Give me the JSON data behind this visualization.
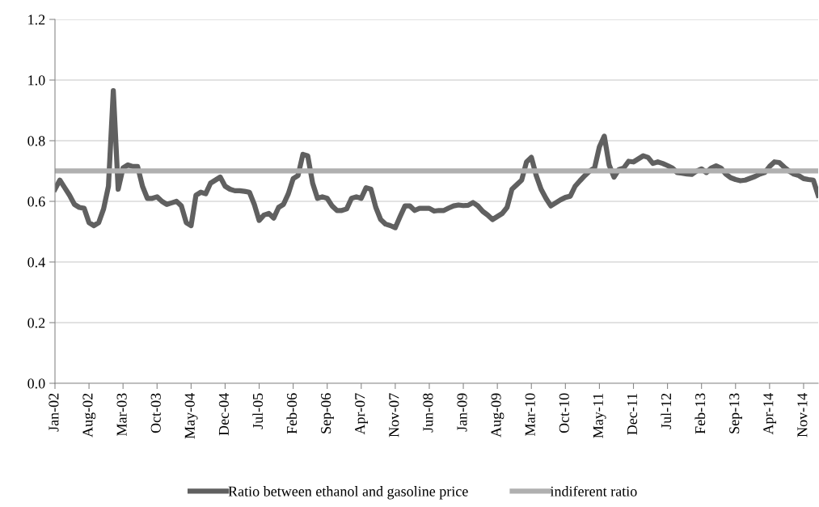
{
  "chart_data": {
    "type": "line",
    "categories": [
      "Jan-02",
      null,
      null,
      null,
      null,
      null,
      null,
      "Aug-02",
      null,
      null,
      null,
      null,
      null,
      null,
      "Mar-03",
      null,
      null,
      null,
      null,
      null,
      null,
      "Oct-03",
      null,
      null,
      null,
      null,
      null,
      null,
      "May-04",
      null,
      null,
      null,
      null,
      null,
      null,
      "Dec-04",
      null,
      null,
      null,
      null,
      null,
      null,
      "Jul-05",
      null,
      null,
      null,
      null,
      null,
      null,
      "Feb-06",
      null,
      null,
      null,
      null,
      null,
      null,
      "Sep-06",
      null,
      null,
      null,
      null,
      null,
      null,
      "Apr-07",
      null,
      null,
      null,
      null,
      null,
      null,
      "Nov-07",
      null,
      null,
      null,
      null,
      null,
      null,
      "Jun-08",
      null,
      null,
      null,
      null,
      null,
      null,
      "Jan-09",
      null,
      null,
      null,
      null,
      null,
      null,
      "Aug-09",
      null,
      null,
      null,
      null,
      null,
      null,
      "Mar-10",
      null,
      null,
      null,
      null,
      null,
      null,
      "Oct-10",
      null,
      null,
      null,
      null,
      null,
      null,
      "May-11",
      null,
      null,
      null,
      null,
      null,
      null,
      "Dec-11",
      null,
      null,
      null,
      null,
      null,
      null,
      "Jul-12",
      null,
      null,
      null,
      null,
      null,
      null,
      "Feb-13",
      null,
      null,
      null,
      null,
      null,
      null,
      "Sep-13",
      null,
      null,
      null,
      null,
      null,
      null,
      "Apr-14",
      null,
      null,
      null,
      null,
      null,
      null,
      "Nov-14",
      null,
      null,
      null
    ],
    "series": [
      {
        "name": "Ratio between ethanol and gasoline price",
        "color": "#606060",
        "values": [
          0.64,
          0.67,
          0.645,
          0.62,
          0.59,
          0.58,
          0.577,
          0.53,
          0.52,
          0.53,
          0.575,
          0.65,
          0.965,
          0.64,
          0.71,
          0.72,
          0.715,
          0.715,
          0.65,
          0.61,
          0.61,
          0.615,
          0.6,
          0.59,
          0.595,
          0.6,
          0.585,
          0.53,
          0.52,
          0.62,
          0.63,
          0.625,
          0.66,
          0.67,
          0.68,
          0.65,
          0.64,
          0.635,
          0.635,
          0.633,
          0.63,
          0.59,
          0.537,
          0.555,
          0.56,
          0.545,
          0.58,
          0.59,
          0.625,
          0.675,
          0.685,
          0.755,
          0.75,
          0.66,
          0.61,
          0.615,
          0.61,
          0.585,
          0.57,
          0.57,
          0.575,
          0.61,
          0.615,
          0.61,
          0.645,
          0.64,
          0.58,
          0.54,
          0.525,
          0.52,
          0.513,
          0.55,
          0.585,
          0.585,
          0.57,
          0.577,
          0.577,
          0.577,
          0.568,
          0.57,
          0.57,
          0.578,
          0.585,
          0.588,
          0.586,
          0.587,
          0.596,
          0.585,
          0.567,
          0.555,
          0.54,
          0.55,
          0.56,
          0.58,
          0.64,
          0.655,
          0.67,
          0.73,
          0.745,
          0.685,
          0.64,
          0.61,
          0.585,
          0.595,
          0.605,
          0.613,
          0.617,
          0.65,
          0.668,
          0.685,
          0.7,
          0.71,
          0.78,
          0.815,
          0.72,
          0.68,
          0.705,
          0.71,
          0.732,
          0.73,
          0.74,
          0.75,
          0.745,
          0.725,
          0.73,
          0.725,
          0.718,
          0.71,
          0.695,
          0.693,
          0.69,
          0.689,
          0.7,
          0.707,
          0.695,
          0.71,
          0.717,
          0.71,
          0.69,
          0.678,
          0.672,
          0.668,
          0.67,
          0.676,
          0.682,
          0.69,
          0.695,
          0.715,
          0.73,
          0.728,
          0.713,
          0.7,
          0.69,
          0.685,
          0.675,
          0.672,
          0.67,
          0.62
        ]
      },
      {
        "name": "indiferent ratio",
        "color": "#b0b0b0",
        "values": [
          0.7,
          0.7,
          0.7,
          0.7,
          0.7,
          0.7,
          0.7,
          0.7,
          0.7,
          0.7,
          0.7,
          0.7,
          0.7,
          0.7,
          0.7,
          0.7,
          0.7,
          0.7,
          0.7,
          0.7,
          0.7,
          0.7,
          0.7,
          0.7,
          0.7,
          0.7,
          0.7,
          0.7,
          0.7,
          0.7,
          0.7,
          0.7,
          0.7,
          0.7,
          0.7,
          0.7,
          0.7,
          0.7,
          0.7,
          0.7,
          0.7,
          0.7,
          0.7,
          0.7,
          0.7,
          0.7,
          0.7,
          0.7,
          0.7,
          0.7,
          0.7,
          0.7,
          0.7,
          0.7,
          0.7,
          0.7,
          0.7,
          0.7,
          0.7,
          0.7,
          0.7,
          0.7,
          0.7,
          0.7,
          0.7,
          0.7,
          0.7,
          0.7,
          0.7,
          0.7,
          0.7,
          0.7,
          0.7,
          0.7,
          0.7,
          0.7,
          0.7,
          0.7,
          0.7,
          0.7,
          0.7,
          0.7,
          0.7,
          0.7,
          0.7,
          0.7,
          0.7,
          0.7,
          0.7,
          0.7,
          0.7,
          0.7,
          0.7,
          0.7,
          0.7,
          0.7,
          0.7,
          0.7,
          0.7,
          0.7,
          0.7,
          0.7,
          0.7,
          0.7,
          0.7,
          0.7,
          0.7,
          0.7,
          0.7,
          0.7,
          0.7,
          0.7,
          0.7,
          0.7,
          0.7,
          0.7,
          0.7,
          0.7,
          0.7,
          0.7,
          0.7,
          0.7,
          0.7,
          0.7,
          0.7,
          0.7,
          0.7,
          0.7,
          0.7,
          0.7,
          0.7,
          0.7,
          0.7,
          0.7,
          0.7,
          0.7,
          0.7,
          0.7,
          0.7,
          0.7,
          0.7,
          0.7,
          0.7,
          0.7,
          0.7,
          0.7,
          0.7,
          0.7,
          0.7,
          0.7,
          0.7,
          0.7,
          0.7,
          0.7,
          0.7,
          0.7,
          0.7,
          0.7
        ]
      }
    ],
    "ylim": [
      0,
      1.2
    ],
    "yticks": [
      {
        "value": 0,
        "label": "0.0"
      },
      {
        "value": 0.2,
        "label": "0.2"
      },
      {
        "value": 0.4,
        "label": "0.4"
      },
      {
        "value": 0.6,
        "label": "0.6"
      },
      {
        "value": 0.8,
        "label": "0.8"
      },
      {
        "value": 1.0,
        "label": "1.0"
      },
      {
        "value": 1.2,
        "label": "1.2"
      }
    ],
    "grid": "y",
    "legend": "bottom",
    "marker": "none",
    "line_style": "solid"
  }
}
